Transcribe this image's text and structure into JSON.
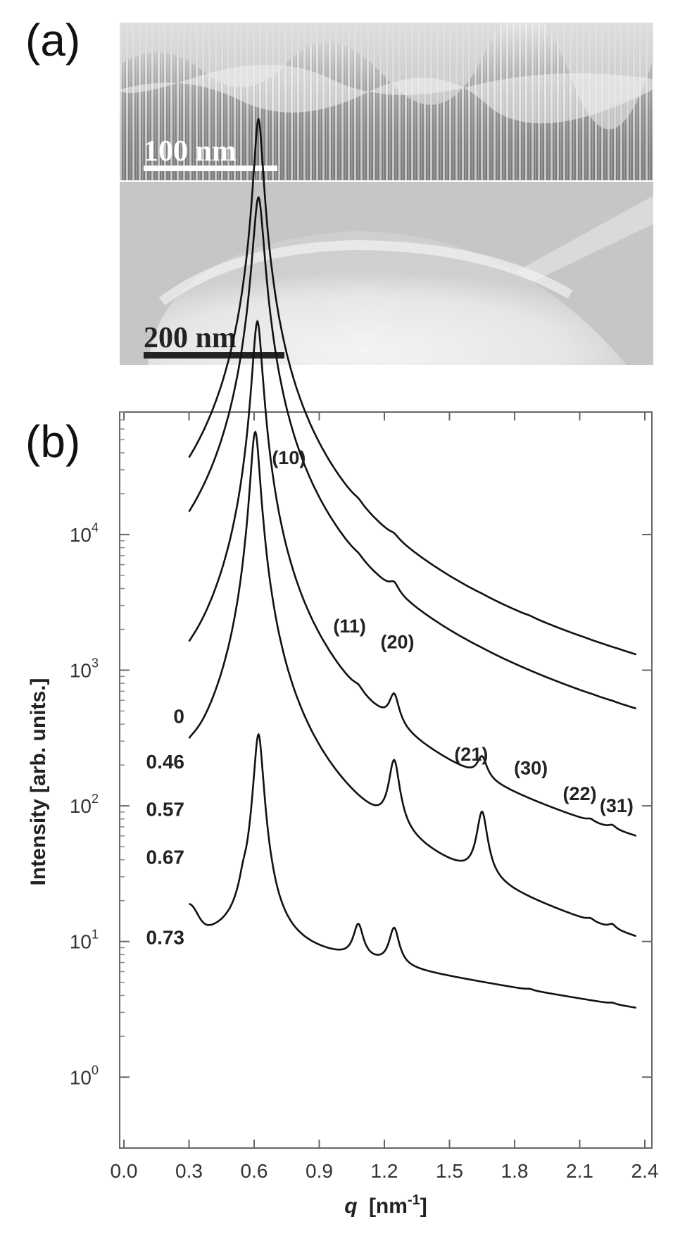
{
  "panel_a": {
    "label": "(a)",
    "top_image_scalebar": "100 nm",
    "bottom_image_scalebar": "200 nm"
  },
  "panel_b": {
    "label": "(b)"
  },
  "chart_data": {
    "type": "line",
    "xlabel_prefix": "q",
    "xlabel_unit": "[nm",
    "xlabel_exp": "-1",
    "xlabel_close": "]",
    "ylabel": "Intensity [arb. units.]",
    "xlim": [
      0.0,
      2.4
    ],
    "yscale": "log",
    "ylim": [
      0.3,
      80000
    ],
    "x_ticks": [
      "0.0",
      "0.3",
      "0.6",
      "0.9",
      "1.2",
      "1.5",
      "1.8",
      "2.1",
      "2.4"
    ],
    "y_ticks": [
      {
        "base": "10",
        "exp": "0",
        "value": 1
      },
      {
        "base": "10",
        "exp": "1",
        "value": 10
      },
      {
        "base": "10",
        "exp": "2",
        "value": 100
      },
      {
        "base": "10",
        "exp": "3",
        "value": 1000
      },
      {
        "base": "10",
        "exp": "4",
        "value": 10000
      }
    ],
    "series": [
      {
        "name": "0",
        "baseline": 420,
        "decay": 0.85,
        "start_x": 0.3,
        "peaks": [
          [
            0.62,
            36000,
            0.018
          ],
          [
            1.08,
            3.2,
            0.025
          ],
          [
            1.245,
            2.6,
            0.025
          ],
          [
            1.65,
            0.12,
            0.025
          ],
          [
            1.87,
            0.25,
            0.025
          ],
          [
            2.12,
            0.05,
            0.02
          ],
          [
            2.28,
            0.05,
            0.02
          ]
        ]
      },
      {
        "name": "0.46",
        "baseline": 230,
        "decay": 0.95,
        "start_x": 0.3,
        "peaks": [
          [
            0.62,
            18000,
            0.022
          ],
          [
            1.08,
            2.2,
            0.025
          ],
          [
            1.245,
            6.5,
            0.025
          ],
          [
            1.65,
            0.08,
            0.025
          ],
          [
            2.16,
            0.05,
            0.02
          ],
          [
            2.25,
            0.08,
            0.02
          ]
        ]
      },
      {
        "name": "0.57",
        "baseline": 85,
        "decay": 1.0,
        "start_x": 0.3,
        "peaks": [
          [
            0.615,
            6000,
            0.02
          ],
          [
            1.08,
            1.4,
            0.025
          ],
          [
            1.245,
            8.0,
            0.025
          ],
          [
            1.65,
            3.2,
            0.025
          ],
          [
            2.15,
            0.25,
            0.02
          ],
          [
            2.25,
            0.35,
            0.02
          ]
        ]
      },
      {
        "name": "0.67",
        "baseline": 44,
        "decay": 1.25,
        "start_x": 0.3,
        "peaks": [
          [
            0.605,
            1900,
            0.02
          ],
          [
            1.245,
            11.0,
            0.025
          ],
          [
            1.65,
            7.5,
            0.025
          ],
          [
            2.15,
            0.15,
            0.02
          ],
          [
            2.25,
            0.25,
            0.02
          ]
        ]
      },
      {
        "name": "0.73",
        "baseline": 11,
        "decay": 0.6,
        "start_x": 0.3,
        "peaks": [
          [
            0.62,
            36,
            0.02
          ],
          [
            0.55,
            0.6,
            0.02
          ],
          [
            1.08,
            0.85,
            0.025
          ],
          [
            1.245,
            0.95,
            0.025
          ],
          [
            1.87,
            0.02,
            0.02
          ],
          [
            2.25,
            0.02,
            0.02
          ]
        ]
      }
    ],
    "series_labels_y": [
      470,
      218,
      97,
      43,
      11
    ],
    "annotations": [
      {
        "text": "(10)",
        "x": 0.76,
        "y": 33000
      },
      {
        "text": "(11)",
        "x": 1.04,
        "y": 1900
      },
      {
        "text": "(20)",
        "x": 1.26,
        "y": 1450
      },
      {
        "text": "(21)",
        "x": 1.6,
        "y": 215
      },
      {
        "text": "(30)",
        "x": 1.875,
        "y": 170
      },
      {
        "text": "(22)",
        "x": 2.1,
        "y": 110
      },
      {
        "text": "(31)",
        "x": 2.27,
        "y": 90
      }
    ]
  }
}
